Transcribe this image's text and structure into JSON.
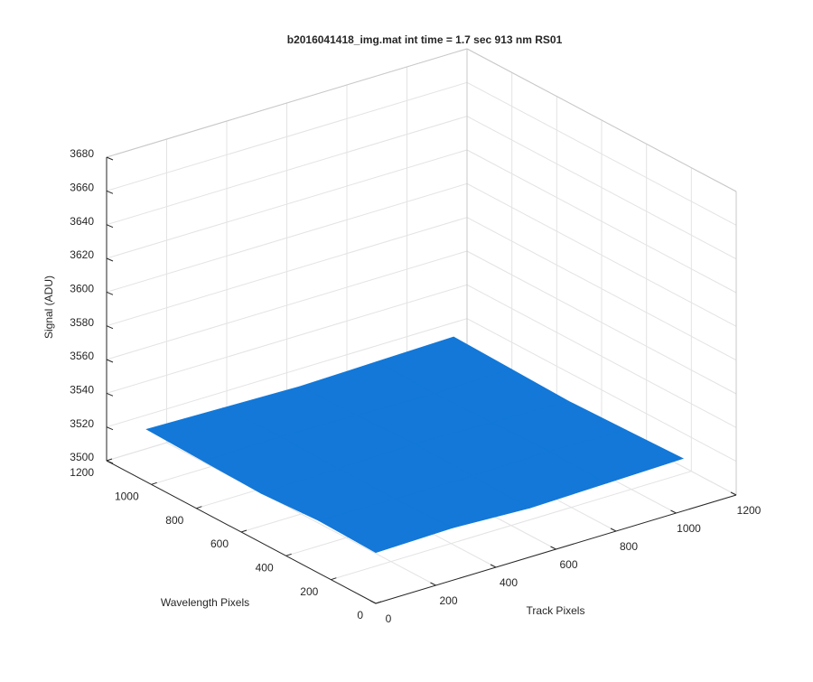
{
  "chart_data": {
    "type": "surface3d",
    "title": "b2016041418_img.mat int time = 1.7 sec  913 nm RS01",
    "xlabel": "Track Pixels",
    "ylabel": "Wavelength Pixels",
    "zlabel": "Signal (ADU)",
    "x": [
      1,
      256,
      512,
      768,
      1024
    ],
    "y": [
      1,
      256,
      512,
      768,
      1024
    ],
    "z": [
      [
        3530,
        3531,
        3529,
        3530,
        3531
      ],
      [
        3531,
        3530,
        3530,
        3531,
        3530
      ],
      [
        3529,
        3530,
        3531,
        3530,
        3529
      ],
      [
        3530,
        3531,
        3530,
        3529,
        3530
      ],
      [
        3531,
        3530,
        3529,
        3530,
        3531
      ]
    ],
    "xlim": [
      0,
      1200
    ],
    "xticks": [
      0,
      200,
      400,
      600,
      800,
      1000,
      1200
    ],
    "ylim": [
      0,
      1200
    ],
    "yticks": [
      0,
      200,
      400,
      600,
      800,
      1000,
      1200
    ],
    "zlim": [
      3500,
      3680
    ],
    "zticks": [
      3500,
      3520,
      3540,
      3560,
      3580,
      3600,
      3620,
      3640,
      3660,
      3680
    ],
    "grid": true,
    "color": "#1378d8"
  }
}
